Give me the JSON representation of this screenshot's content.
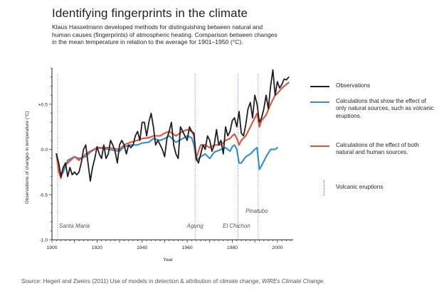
{
  "header": {
    "title": "Identifying fingerprints in the climate",
    "subtitle": "Klaus Hasselmann developed methods for distinguishing between natural and human causes (fingerprints) of atmospheric heating. Comparison between changes in the mean temperature in relation to the average for 1901–1950 (°C)."
  },
  "legend": {
    "observations": "Observations",
    "natural": "Calculations that show the effect of only natural sources, such as volcanic eruptions.",
    "combined": "Calculations of the effect of both natural and human sources.",
    "volcanic": "Volcanic eruptions"
  },
  "source": {
    "prefix": "Source: Hegerl and Zweirs (2011) Use of models in detection & attribution of climate change, ",
    "journal": "WIREs Climate Change."
  },
  "chart_data": {
    "type": "line",
    "xlabel": "Year",
    "ylabel": "Observations of changes in temperature (°C)",
    "xlim": [
      1900,
      2007
    ],
    "ylim": [
      -1.0,
      0.9
    ],
    "xticks": [
      1900,
      1920,
      1940,
      1960,
      1980,
      2000
    ],
    "xtick_labels": [
      "1900",
      "1920",
      "1940",
      "1960",
      "1980",
      "2000"
    ],
    "yticks": [
      -1.0,
      -0.5,
      0.0,
      0.5
    ],
    "ytick_labels": [
      "-1.0",
      "-0.5",
      "0.0",
      "+0.5"
    ],
    "grid": false,
    "legend_position": "right",
    "colors": {
      "observations": "#231f20",
      "natural": "#2f8fd2",
      "combined": "#e0533a",
      "volcanic": "#3a75b6"
    },
    "volcanic_eruptions": [
      {
        "name": "Santa Maria",
        "year": 1902.5
      },
      {
        "name": "Agung",
        "year": 1963.5
      },
      {
        "name": "El Chichon",
        "year": 1982.5
      },
      {
        "name": "Pinatubo",
        "year": 1991.5
      }
    ],
    "series": [
      {
        "name": "Observations",
        "x": [
          1902,
          1903,
          1904,
          1905,
          1906,
          1907,
          1908,
          1909,
          1910,
          1911,
          1912,
          1913,
          1914,
          1915,
          1916,
          1917,
          1918,
          1919,
          1920,
          1921,
          1922,
          1923,
          1924,
          1925,
          1926,
          1927,
          1928,
          1929,
          1930,
          1931,
          1932,
          1933,
          1934,
          1935,
          1936,
          1937,
          1938,
          1939,
          1940,
          1941,
          1942,
          1943,
          1944,
          1945,
          1946,
          1947,
          1948,
          1949,
          1950,
          1951,
          1952,
          1953,
          1954,
          1955,
          1956,
          1957,
          1958,
          1959,
          1960,
          1961,
          1962,
          1963,
          1964,
          1965,
          1966,
          1967,
          1968,
          1969,
          1970,
          1971,
          1972,
          1973,
          1974,
          1975,
          1976,
          1977,
          1978,
          1979,
          1980,
          1981,
          1982,
          1983,
          1984,
          1985,
          1986,
          1987,
          1988,
          1989,
          1990,
          1991,
          1992,
          1993,
          1994,
          1995,
          1996,
          1997,
          1998,
          1999,
          2000,
          2001,
          2002,
          2003,
          2004,
          2005
        ],
        "values": [
          -0.05,
          -0.15,
          -0.3,
          -0.2,
          -0.15,
          -0.3,
          -0.2,
          -0.28,
          -0.25,
          -0.28,
          -0.25,
          -0.15,
          0.0,
          0.05,
          -0.15,
          -0.35,
          -0.2,
          -0.1,
          0.03,
          -0.05,
          -0.1,
          0.05,
          -0.1,
          -0.05,
          0.1,
          0.05,
          -0.02,
          -0.15,
          0.05,
          0.1,
          0.05,
          -0.05,
          0.05,
          0.02,
          0.05,
          0.15,
          0.2,
          0.1,
          0.3,
          0.3,
          0.15,
          0.3,
          0.4,
          0.25,
          0.05,
          0.1,
          0.05,
          0.0,
          -0.08,
          0.12,
          0.2,
          0.3,
          0.05,
          -0.05,
          -0.1,
          0.25,
          0.2,
          0.15,
          0.1,
          0.25,
          0.2,
          0.18,
          -0.1,
          -0.15,
          -0.05,
          0.05,
          0.0,
          0.15,
          0.1,
          -0.02,
          0.05,
          0.22,
          0.05,
          0.1,
          -0.05,
          0.25,
          0.15,
          0.2,
          0.32,
          0.35,
          0.25,
          0.42,
          0.18,
          0.15,
          0.28,
          0.45,
          0.52,
          0.35,
          0.6,
          0.5,
          0.3,
          0.35,
          0.45,
          0.6,
          0.45,
          0.7,
          0.88,
          0.6,
          0.75,
          0.68,
          0.72,
          0.78,
          0.77,
          0.8
        ]
      },
      {
        "name": "Calculations that show the effect of only natural sources, such as volcanic eruptions.",
        "x": [
          1902,
          1903,
          1904,
          1905,
          1907,
          1910,
          1912,
          1915,
          1917,
          1920,
          1925,
          1930,
          1932,
          1935,
          1938,
          1940,
          1943,
          1945,
          1948,
          1950,
          1952,
          1955,
          1958,
          1960,
          1962,
          1963,
          1964,
          1965,
          1966,
          1968,
          1970,
          1972,
          1975,
          1977,
          1979,
          1980,
          1981,
          1982,
          1983,
          1984,
          1986,
          1988,
          1990,
          1991,
          1992,
          1993,
          1995,
          1997,
          1999,
          2000
        ],
        "values": [
          -0.05,
          -0.2,
          -0.3,
          -0.25,
          -0.12,
          -0.08,
          -0.1,
          -0.08,
          -0.03,
          0.02,
          0.0,
          -0.02,
          0.03,
          0.05,
          0.05,
          0.07,
          0.08,
          0.12,
          0.1,
          0.12,
          0.15,
          0.08,
          0.12,
          0.15,
          0.13,
          0.05,
          -0.12,
          -0.1,
          -0.08,
          -0.05,
          -0.1,
          -0.03,
          0.0,
          0.02,
          -0.02,
          0.03,
          0.05,
          0.0,
          -0.15,
          -0.15,
          -0.08,
          -0.05,
          0.0,
          0.02,
          -0.22,
          -0.18,
          -0.08,
          0.0,
          0.0,
          0.02
        ]
      },
      {
        "name": "Calculations of the effect of both natural and human sources.",
        "x": [
          1902,
          1903,
          1904,
          1905,
          1907,
          1910,
          1912,
          1915,
          1917,
          1920,
          1925,
          1930,
          1932,
          1935,
          1938,
          1940,
          1943,
          1945,
          1948,
          1950,
          1952,
          1955,
          1958,
          1960,
          1962,
          1963,
          1964,
          1965,
          1966,
          1968,
          1970,
          1972,
          1975,
          1977,
          1979,
          1980,
          1981,
          1982,
          1983,
          1984,
          1986,
          1988,
          1990,
          1991,
          1992,
          1993,
          1995,
          1997,
          1999,
          2000,
          2002,
          2005
        ],
        "values": [
          -0.05,
          -0.25,
          -0.32,
          -0.2,
          -0.15,
          -0.08,
          -0.12,
          -0.05,
          -0.02,
          0.02,
          0.02,
          0.0,
          0.05,
          0.08,
          0.1,
          0.12,
          0.13,
          0.15,
          0.15,
          0.18,
          0.2,
          0.15,
          0.2,
          0.22,
          0.2,
          0.15,
          -0.1,
          -0.02,
          0.05,
          0.05,
          0.02,
          0.05,
          0.05,
          0.1,
          0.12,
          0.15,
          0.17,
          0.12,
          0.05,
          0.1,
          0.15,
          0.25,
          0.35,
          0.4,
          0.25,
          0.32,
          0.38,
          0.5,
          0.6,
          0.62,
          0.68,
          0.74
        ]
      }
    ]
  }
}
